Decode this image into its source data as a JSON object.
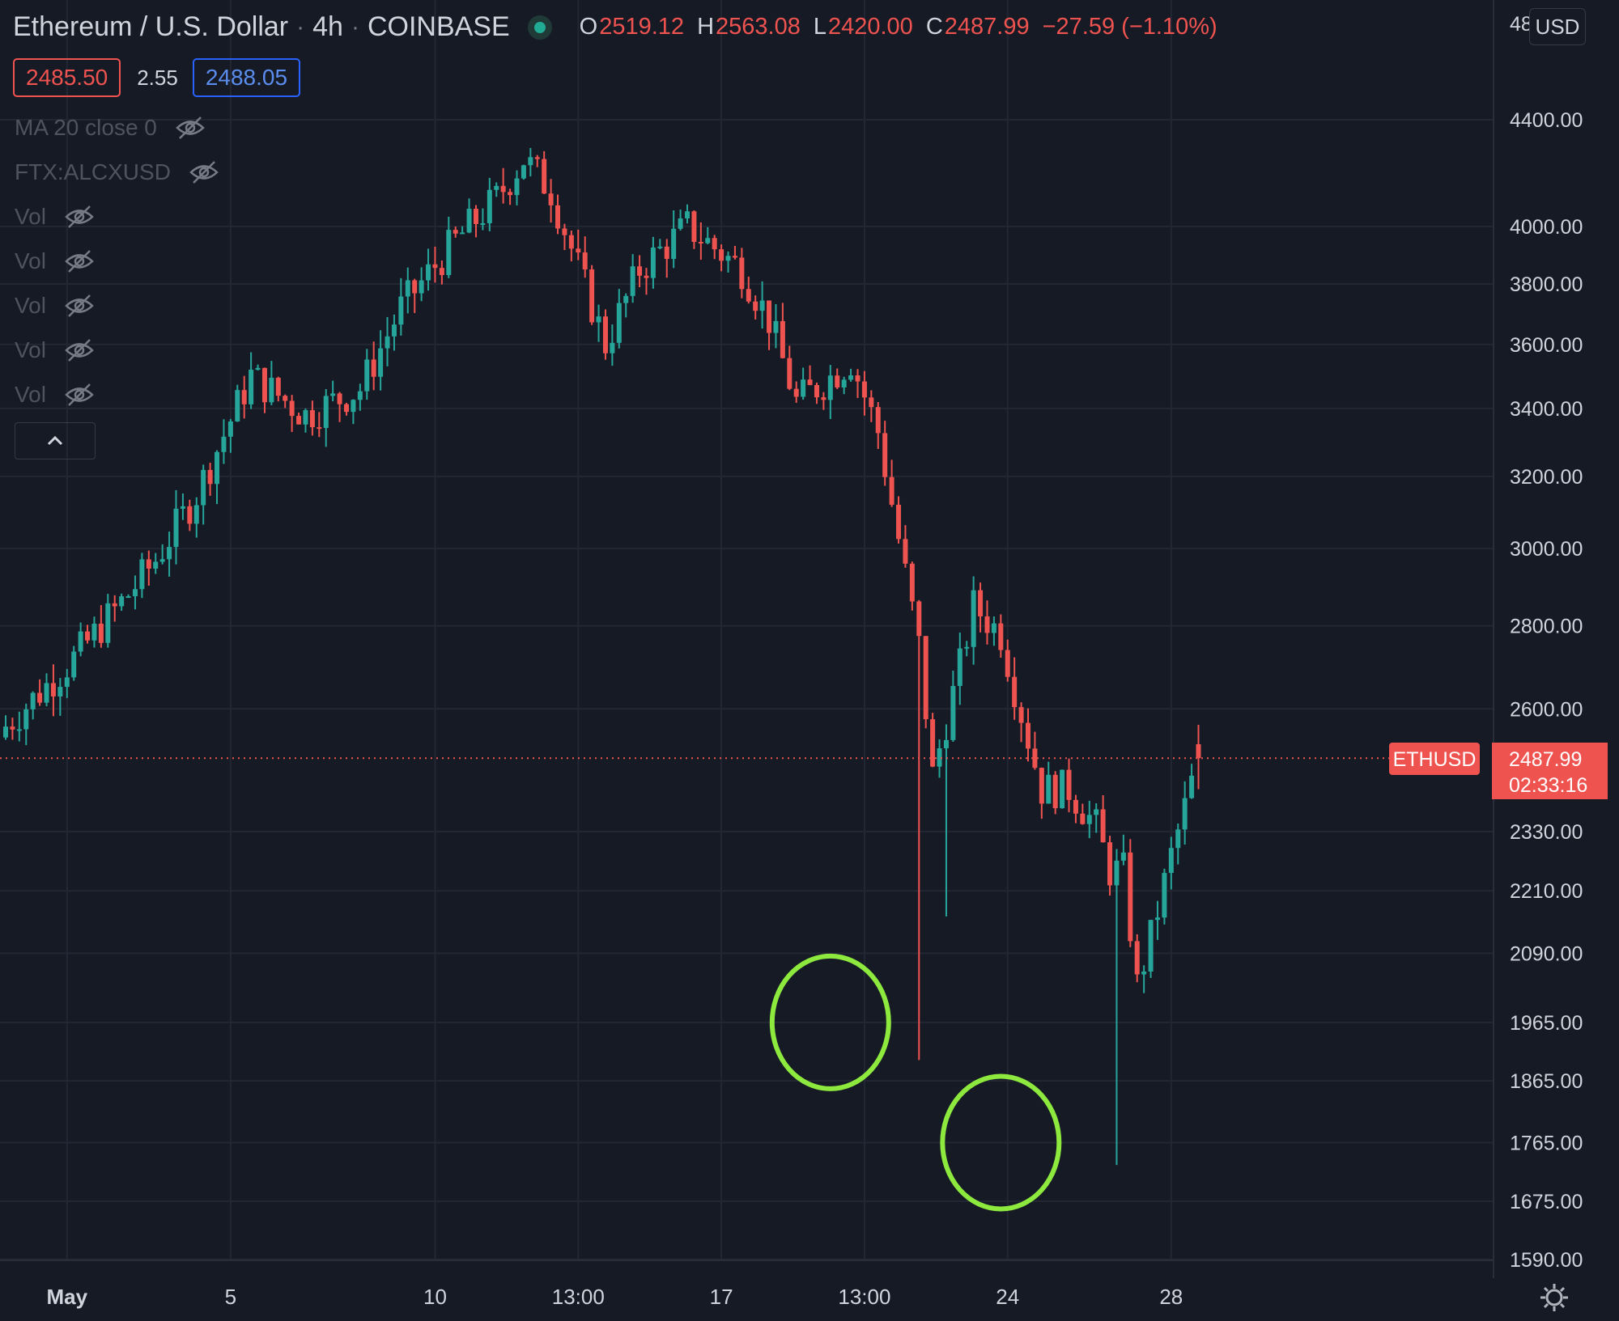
{
  "header": {
    "symbol": "Ethereum / U.S. Dollar",
    "interval": "4h",
    "exchange": "COINBASE",
    "open_label": "O",
    "open": "2519.12",
    "high_label": "H",
    "high": "2563.08",
    "low_label": "L",
    "low": "2420.00",
    "close_label": "C",
    "close": "2487.99",
    "change": "−27.59 (−1.10%)"
  },
  "prices": {
    "bid": "2485.50",
    "spread": "2.55",
    "ask": "2488.05"
  },
  "indicators": [
    {
      "label": "MA 20 close 0"
    },
    {
      "label": "FTX:ALCXUSD"
    },
    {
      "label": "Vol"
    },
    {
      "label": "Vol"
    },
    {
      "label": "Vol"
    },
    {
      "label": "Vol"
    },
    {
      "label": "Vol"
    }
  ],
  "currency_button": "USD",
  "last_price_tag": {
    "symbol": "ETHUSD",
    "price": "2487.99",
    "countdown": "02:33:16"
  },
  "colors": {
    "up": "#26a69a",
    "down": "#ef5350",
    "background": "#161a25",
    "highlight_circle": "#8de93e"
  },
  "icons": [
    "live-status-icon",
    "eye-hidden-icon",
    "chevron-up-icon",
    "settings-gear-icon"
  ],
  "chart_data": {
    "type": "candlestick",
    "scale": "log",
    "grid": true,
    "y_ticks": [
      "4400.00",
      "4000.00",
      "3800.00",
      "3600.00",
      "3400.00",
      "3200.00",
      "3000.00",
      "2800.00",
      "2600.00",
      "2330.00",
      "2210.00",
      "2090.00",
      "1965.00",
      "1865.00",
      "1765.00",
      "1675.00",
      "1590.00"
    ],
    "x_ticks": [
      {
        "label": "May",
        "bold": true,
        "t": 9
      },
      {
        "label": "5",
        "bold": false,
        "t": 33
      },
      {
        "label": "10",
        "bold": false,
        "t": 63
      },
      {
        "label": "13:00",
        "bold": false,
        "t": 84
      },
      {
        "label": "17",
        "bold": false,
        "t": 105
      },
      {
        "label": "13:00",
        "bold": false,
        "t": 126
      },
      {
        "label": "24",
        "bold": false,
        "t": 147
      },
      {
        "label": "28",
        "bold": false,
        "t": 171
      }
    ],
    "annotations": [
      {
        "type": "circle",
        "t": 121,
        "price": 1965
      },
      {
        "type": "circle",
        "t": 146,
        "price": 1765
      }
    ],
    "key_points": [
      [
        0,
        2560
      ],
      [
        10,
        2720
      ],
      [
        18,
        2880
      ],
      [
        22,
        2970
      ],
      [
        28,
        3150
      ],
      [
        36,
        3500
      ],
      [
        44,
        3380
      ],
      [
        52,
        3460
      ],
      [
        58,
        3720
      ],
      [
        66,
        3950
      ],
      [
        72,
        4100
      ],
      [
        76,
        4250
      ],
      [
        80,
        4130
      ],
      [
        88,
        3600
      ],
      [
        93,
        3850
      ],
      [
        100,
        4000
      ],
      [
        108,
        3850
      ],
      [
        112,
        3680
      ],
      [
        116,
        3420
      ],
      [
        120,
        3480
      ],
      [
        124,
        3550
      ],
      [
        128,
        3330
      ],
      [
        134,
        2750
      ],
      [
        136,
        2450
      ],
      [
        140,
        2700
      ],
      [
        142,
        2850
      ],
      [
        146,
        2780
      ],
      [
        148,
        2650
      ],
      [
        152,
        2420
      ],
      [
        156,
        2420
      ],
      [
        160,
        2340
      ],
      [
        162,
        2250
      ],
      [
        164,
        2250
      ],
      [
        166,
        2030
      ],
      [
        168,
        2120
      ],
      [
        171,
        2280
      ],
      [
        173,
        2380
      ],
      [
        175,
        2488
      ]
    ],
    "wick_events": [
      {
        "index": 134,
        "low": 1900
      },
      {
        "index": 138,
        "low": 2160
      },
      {
        "index": 163,
        "low": 1730
      }
    ],
    "last_candle": {
      "open": 2519.12,
      "high": 2563.08,
      "low": 2420.0,
      "close": 2487.99
    }
  }
}
